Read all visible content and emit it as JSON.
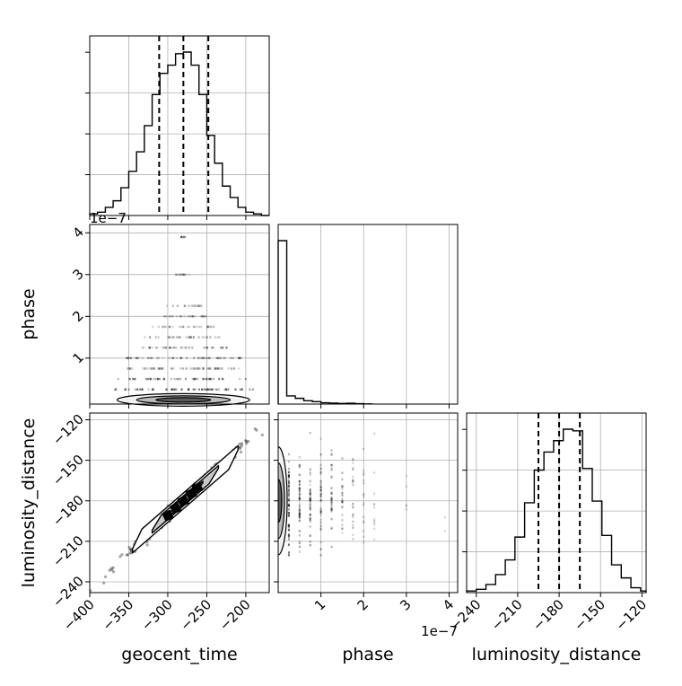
{
  "chart_data": {
    "type": "corner",
    "parameters": [
      "geocent_time",
      "phase",
      "luminosity_distance"
    ],
    "axis_labels": {
      "geocent_time": "geocent_time",
      "phase": "phase",
      "luminosity_distance": "luminosity_distance"
    },
    "offset_text": "1e−7",
    "grid": true,
    "histograms": {
      "geocent_time": {
        "range": [
          -400,
          -170
        ],
        "ticks": [
          -400,
          -350,
          -300,
          -250,
          -200
        ],
        "tick_labels": [
          "−400",
          "−350",
          "−300",
          "−250",
          "−200"
        ],
        "bin_edges": [
          -400,
          -390,
          -380,
          -370,
          -360,
          -350,
          -340,
          -330,
          -320,
          -310,
          -300,
          -290,
          -280,
          -270,
          -260,
          -250,
          -240,
          -230,
          -220,
          -210,
          -200,
          -190,
          -180,
          -170
        ],
        "counts": [
          0.01,
          0.02,
          0.05,
          0.09,
          0.17,
          0.27,
          0.39,
          0.55,
          0.74,
          0.87,
          0.92,
          0.99,
          1.0,
          0.92,
          0.74,
          0.49,
          0.32,
          0.18,
          0.11,
          0.05,
          0.02,
          0.01,
          0.0
        ],
        "quantiles": [
          -311,
          -280,
          -248
        ],
        "yticks_unlabeled": 4
      },
      "phase": {
        "range": [
          0,
          4.2e-07
        ],
        "ticks": [
          1e-07,
          2e-07,
          3e-07,
          4e-07
        ],
        "tick_labels": [
          "1",
          "2",
          "3",
          "4"
        ],
        "bin_edges": [
          0,
          2e-08,
          4e-08,
          6e-08,
          8e-08,
          1e-07,
          1.2e-07,
          1.4e-07,
          1.6e-07,
          1.8e-07,
          2e-07,
          2.2e-07
        ],
        "counts": [
          1.0,
          0.05,
          0.035,
          0.02,
          0.015,
          0.008,
          0.006,
          0.004,
          0.005,
          0.002,
          0.001,
          0.0
        ],
        "quantiles": []
      },
      "luminosity_distance": {
        "range": [
          -247,
          -117
        ],
        "ticks": [
          -240,
          -210,
          -180,
          -150,
          -120
        ],
        "tick_labels": [
          "−240",
          "−210",
          "−180",
          "−150",
          "−120"
        ],
        "bin_edges": [
          -247,
          -240,
          -233,
          -226,
          -219,
          -212,
          -205,
          -198,
          -191,
          -184,
          -177,
          -170,
          -163,
          -156,
          -149,
          -142,
          -135,
          -128,
          -121,
          -117
        ],
        "counts": [
          0.01,
          0.02,
          0.05,
          0.11,
          0.2,
          0.34,
          0.55,
          0.75,
          0.86,
          0.93,
          1.0,
          0.99,
          0.76,
          0.56,
          0.35,
          0.17,
          0.09,
          0.03,
          0.01
        ],
        "quantiles": [
          -195,
          -180,
          -165
        ],
        "yticks_unlabeled": 4
      }
    },
    "scatter_panels": [
      {
        "x": "geocent_time",
        "y": "phase",
        "yrange": [
          -1e-08,
          4.2e-07
        ],
        "yticks": [
          1e-07,
          2e-07,
          3e-07,
          4e-07
        ],
        "ytick_labels": [
          "1",
          "2",
          "3",
          "4"
        ],
        "phase_levels": [
          2.5e-08,
          5e-08,
          7.5e-08,
          1e-07,
          1.25e-07,
          1.5e-07,
          1.75e-07,
          2e-07,
          2.25e-07,
          3e-07,
          3.9e-07
        ],
        "phase_level_strength": [
          0.9,
          0.6,
          0.5,
          0.55,
          0.4,
          0.3,
          0.2,
          0.15,
          0.08,
          0.05,
          0.03
        ],
        "phase_level_halfwidth": [
          90,
          85,
          75,
          75,
          60,
          50,
          40,
          30,
          25,
          10,
          3
        ],
        "center": [
          -280,
          0
        ],
        "contours_x_halfwidth": [
          85,
          60,
          35
        ]
      },
      {
        "x": "geocent_time",
        "y": "luminosity_distance",
        "yrange": [
          -248,
          -115
        ],
        "yticks": [
          -240,
          -210,
          -180,
          -150,
          -120
        ],
        "ytick_labels": [
          "−240",
          "−210",
          "−180",
          "−150",
          "−120"
        ],
        "trend": {
          "slope": 0.54,
          "intercept": -29,
          "x_from": -400,
          "x_to": -170
        },
        "contour_x_extent": [
          [
            -345,
            -210
          ],
          [
            -320,
            -235
          ],
          [
            -300,
            -255
          ]
        ],
        "contour_halfthick": [
          8,
          5,
          3
        ]
      },
      {
        "x": "phase",
        "y": "luminosity_distance",
        "xrange": [
          0,
          4.2e-07
        ],
        "yrange": [
          -248,
          -115
        ],
        "center_y": -180,
        "contour_y_halfheight": [
          40,
          28,
          16
        ]
      }
    ]
  }
}
